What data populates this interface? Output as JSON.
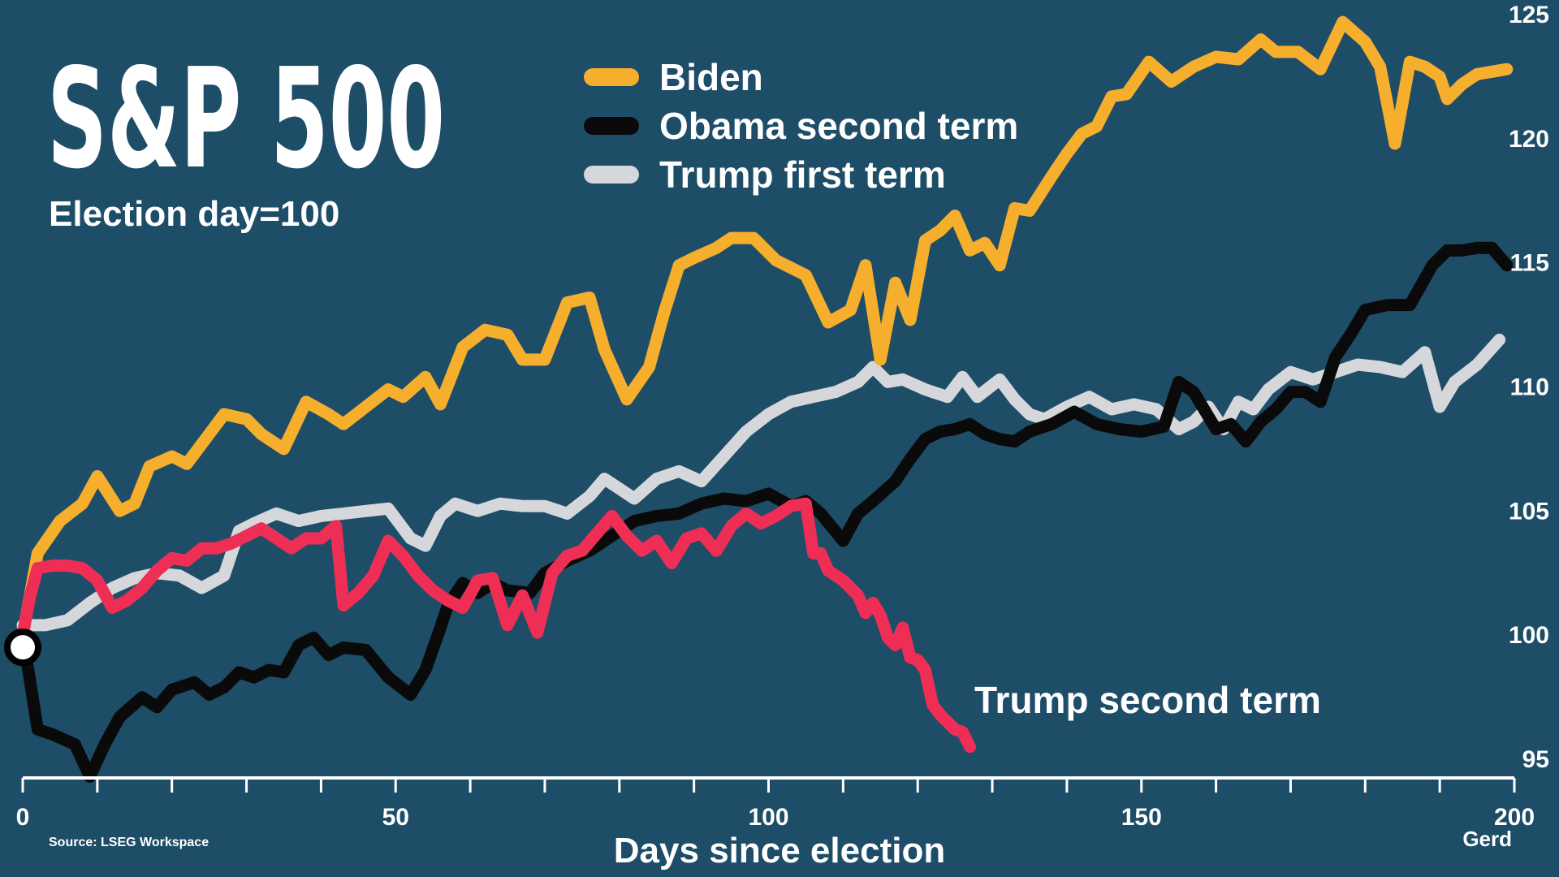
{
  "header": {
    "title": "S&P 500",
    "subtitle": "Election day=100"
  },
  "footer": {
    "source": "Source: LSEG Workspace",
    "logo": "Gerd"
  },
  "chart_data": {
    "type": "line",
    "title": "S&P 500",
    "subtitle": "Election day=100",
    "xlabel": "Days since election",
    "ylabel": "",
    "xlim": [
      0,
      200
    ],
    "ylim": [
      95,
      125
    ],
    "x_ticks": [
      0,
      50,
      100,
      150,
      200
    ],
    "y_ticks": [
      95,
      100,
      105,
      110,
      115,
      120,
      125
    ],
    "y_axis_position": "right",
    "grid": false,
    "legend_position": "top-center",
    "background": "#1e4d68",
    "series": [
      {
        "name": "Biden",
        "color": "#f6ae2d",
        "x": [
          0,
          2,
          5,
          8,
          10,
          13,
          15,
          17,
          20,
          22,
          25,
          27,
          30,
          32,
          35,
          38,
          41,
          43,
          46,
          49,
          51,
          54,
          56,
          59,
          62,
          65,
          67,
          70,
          73,
          76,
          78,
          81,
          84,
          86,
          88,
          90,
          93,
          95,
          98,
          101,
          105,
          108,
          111,
          113,
          115,
          117,
          119,
          121,
          123,
          125,
          127,
          129,
          131,
          133,
          135,
          138,
          140,
          142,
          144,
          146,
          148,
          151,
          154,
          157,
          160,
          163,
          166,
          168,
          171,
          174,
          177,
          180,
          182,
          184,
          186,
          188,
          190,
          191,
          193,
          195,
          197,
          199
        ],
        "values": [
          100,
          103.3,
          104.6,
          105.3,
          106.4,
          105,
          105.3,
          106.8,
          107.2,
          106.9,
          108.1,
          108.9,
          108.7,
          108.1,
          107.5,
          109.4,
          108.9,
          108.5,
          109.2,
          109.9,
          109.6,
          110.4,
          109.3,
          111.6,
          112.3,
          112.1,
          111.1,
          111.1,
          113.4,
          113.6,
          111.5,
          109.5,
          110.8,
          113,
          114.9,
          115.2,
          115.6,
          116,
          116,
          115.1,
          114.5,
          112.6,
          113.1,
          114.9,
          111.1,
          114.2,
          112.7,
          115.9,
          116.3,
          116.9,
          115.5,
          115.8,
          114.9,
          117.2,
          117.1,
          118.5,
          119.4,
          120.2,
          120.5,
          121.7,
          121.8,
          123.1,
          122.3,
          122.9,
          123.3,
          123.2,
          124,
          123.5,
          123.5,
          122.8,
          124.7,
          123.9,
          122.9,
          119.8,
          123.1,
          122.9,
          122.5,
          121.6,
          122.2,
          122.6,
          122.7,
          122.8
        ]
      },
      {
        "name": "Obama second term",
        "color": "#0a0a0a",
        "x": [
          0,
          2,
          4,
          7,
          9,
          11,
          13,
          16,
          18,
          20,
          23,
          25,
          27,
          29,
          31,
          33,
          35,
          37,
          39,
          41,
          43,
          46,
          49,
          52,
          54,
          56,
          57,
          59,
          61,
          63,
          65,
          68,
          70,
          73,
          76,
          79,
          82,
          85,
          88,
          91,
          94,
          97,
          100,
          103,
          105,
          107,
          110,
          112,
          114,
          117,
          119,
          121,
          123,
          125,
          127,
          129,
          131,
          133,
          135,
          138,
          141,
          144,
          147,
          150,
          153,
          155,
          157,
          160,
          162,
          164,
          166,
          168,
          170,
          172,
          174,
          176,
          178,
          180,
          183,
          186,
          189,
          191,
          193,
          195,
          197,
          199
        ],
        "values": [
          100,
          96.2,
          96,
          95.6,
          94.3,
          95.6,
          96.7,
          97.5,
          97.1,
          97.8,
          98.1,
          97.6,
          97.9,
          98.5,
          98.3,
          98.6,
          98.5,
          99.6,
          99.9,
          99.2,
          99.5,
          99.4,
          98.3,
          97.6,
          98.6,
          100.3,
          101.2,
          102.1,
          101.7,
          102.1,
          101.8,
          101.7,
          102.5,
          103,
          103.4,
          104,
          104.6,
          104.8,
          104.9,
          105.3,
          105.5,
          105.4,
          105.7,
          105.2,
          105.4,
          104.9,
          103.8,
          104.9,
          105.4,
          106.2,
          107.1,
          107.9,
          108.2,
          108.3,
          108.5,
          108.1,
          107.9,
          107.8,
          108.2,
          108.5,
          109,
          108.5,
          108.3,
          108.2,
          108.4,
          110.2,
          109.8,
          108.3,
          108.5,
          107.8,
          108.6,
          109.1,
          109.8,
          109.8,
          109.4,
          111.2,
          112.1,
          113.1,
          113.3,
          113.3,
          114.9,
          115.5,
          115.5,
          115.6,
          115.6,
          114.9
        ]
      },
      {
        "name": "Trump first term",
        "color": "#d6d7da",
        "x": [
          0,
          3,
          6,
          9,
          12,
          15,
          18,
          21,
          24,
          27,
          29,
          31,
          34,
          37,
          40,
          43,
          46,
          49,
          52,
          54,
          56,
          58,
          61,
          64,
          67,
          70,
          73,
          76,
          78,
          80,
          82,
          85,
          88,
          91,
          94,
          97,
          100,
          103,
          106,
          109,
          112,
          114,
          116,
          118,
          121,
          124,
          126,
          128,
          131,
          133,
          135,
          137,
          140,
          143,
          146,
          149,
          152,
          155,
          157,
          159,
          161,
          163,
          165,
          167,
          170,
          173,
          176,
          179,
          182,
          185,
          188,
          190,
          192,
          195,
          198
        ],
        "values": [
          100.4,
          100.4,
          100.6,
          101.3,
          101.9,
          102.3,
          102.5,
          102.4,
          101.9,
          102.4,
          104.2,
          104.5,
          104.9,
          104.6,
          104.8,
          104.9,
          105,
          105.1,
          103.9,
          103.6,
          104.8,
          105.3,
          105,
          105.3,
          105.2,
          105.2,
          104.9,
          105.6,
          106.3,
          105.9,
          105.5,
          106.3,
          106.6,
          106.2,
          107.2,
          108.2,
          108.9,
          109.4,
          109.6,
          109.8,
          110.2,
          110.8,
          110.2,
          110.3,
          109.9,
          109.6,
          110.4,
          109.6,
          110.3,
          109.5,
          108.9,
          108.7,
          109.2,
          109.6,
          109.1,
          109.3,
          109.1,
          108.3,
          108.6,
          109.2,
          108.3,
          109.4,
          109.1,
          109.9,
          110.6,
          110.3,
          110.6,
          110.9,
          110.8,
          110.6,
          111.4,
          109.2,
          110.2,
          110.9,
          111.9
        ]
      },
      {
        "name": "Trump second term",
        "color": "#ef2e55",
        "x": [
          0,
          1,
          2,
          4,
          6,
          8,
          10,
          12,
          14,
          16,
          18,
          20,
          22,
          24,
          26,
          28,
          30,
          32,
          34,
          36,
          38,
          40,
          42,
          43,
          45,
          47,
          49,
          51,
          53,
          55,
          57,
          59,
          61,
          63,
          65,
          67,
          69,
          71,
          73,
          75,
          77,
          79,
          81,
          83,
          85,
          87,
          89,
          91,
          93,
          95,
          97,
          99,
          101,
          103,
          105,
          106,
          107,
          108,
          110,
          112,
          113,
          114,
          115,
          116,
          117,
          118,
          119,
          120,
          121,
          122,
          123,
          124,
          125,
          126,
          127
        ],
        "values": [
          100,
          101.6,
          102.7,
          102.8,
          102.8,
          102.7,
          102.2,
          101.1,
          101.4,
          101.9,
          102.6,
          103.1,
          103,
          103.5,
          103.5,
          103.7,
          104,
          104.3,
          103.9,
          103.5,
          103.9,
          103.9,
          104.4,
          101.2,
          101.7,
          102.4,
          103.8,
          103.2,
          102.4,
          101.8,
          101.4,
          101.1,
          102.2,
          102.3,
          100.4,
          101.6,
          100.1,
          102.5,
          103.2,
          103.4,
          104.1,
          104.8,
          104,
          103.4,
          103.8,
          102.9,
          103.9,
          104.1,
          103.4,
          104.4,
          104.9,
          104.5,
          104.8,
          105.2,
          105.3,
          103.3,
          103.3,
          102.6,
          102.2,
          101.6,
          100.9,
          101.3,
          100.8,
          99.9,
          99.6,
          100.3,
          99.1,
          99,
          98.6,
          97.2,
          96.8,
          96.5,
          96.2,
          96.1,
          95.5
        ]
      }
    ],
    "annotations": [
      {
        "text": "Trump second term",
        "series": "Trump second term"
      }
    ]
  }
}
